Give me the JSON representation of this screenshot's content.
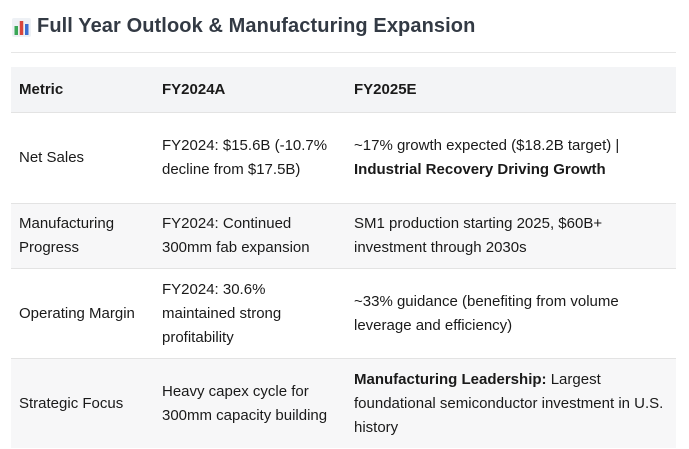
{
  "header": {
    "title": "Full Year Outlook & Manufacturing Expansion",
    "icon": "bar-chart-icon"
  },
  "table": {
    "columns": [
      "Metric",
      "FY2024A",
      "FY2025E"
    ],
    "rows": [
      {
        "metric": "Net Sales",
        "fy2024": "FY2024: $15.6B (-10.7% decline from $17.5B)",
        "fy2025_prefix": "~17% growth expected ($18.2B target) |",
        "fy2025_bold": "Industrial Recovery Driving Growth"
      },
      {
        "metric": "Manufacturing Progress",
        "fy2024": "FY2024: Continued 300mm fab expansion",
        "fy2025": "SM1 production starting 2025, $60B+ investment through 2030s"
      },
      {
        "metric": "Operating Margin",
        "fy2024": "FY2024: 30.6% maintained strong profitability",
        "fy2025": "~33% guidance (benefiting from volume leverage and efficiency)"
      },
      {
        "metric": "Strategic Focus",
        "fy2024": "Heavy capex cycle for 300mm capacity building",
        "fy2025_bold": "Manufacturing Leadership:",
        "fy2025_rest": " Largest foundational semiconductor investment in U.S. history"
      }
    ]
  },
  "colors": {
    "title": "#333a44",
    "header_row_bg": "#f3f4f6",
    "alt_row_bg": "#f7f7f8",
    "icon_green": "#3aa757",
    "icon_blue": "#3b6fd1",
    "icon_red": "#d9463b"
  }
}
